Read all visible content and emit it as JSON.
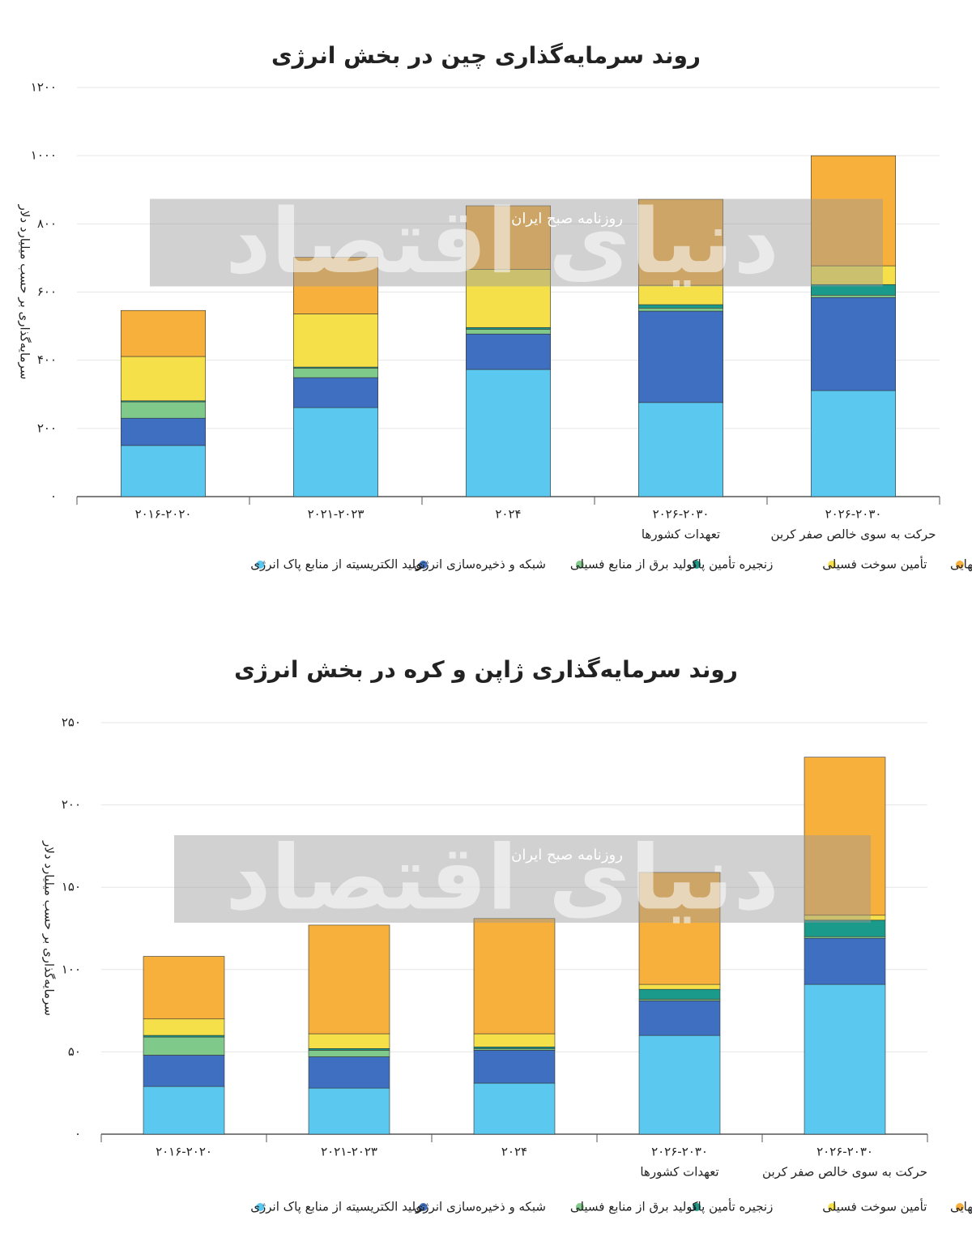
{
  "chart_data": [
    {
      "type": "stacked_bar",
      "title": "روند سرمایه‌گذاری چین در بخش انرژی",
      "y_label": "سرمایه‌گذاری بر حسب میلیارد دلار",
      "watermark": "دنیای اقتصاد",
      "watermark_note": "روزنامه صبح ایران",
      "categories": [
        "۲۰۱۶-۲۰۲۰",
        "۲۰۲۱-۲۰۲۳",
        "۲۰۲۴",
        "۲۰۲۶-۲۰۳۰",
        "۲۰۲۶-۲۰۳۰"
      ],
      "category_notes": [
        null,
        null,
        null,
        "تعهدات کشورها",
        "حرکت به سوی خالص صفر کربن"
      ],
      "ylim": [
        0,
        1200
      ],
      "yticks": [
        {
          "value": 0,
          "label": "۰"
        },
        {
          "value": 200,
          "label": "۲۰۰"
        },
        {
          "value": 400,
          "label": "۴۰۰"
        },
        {
          "value": 600,
          "label": "۶۰۰"
        },
        {
          "value": 800,
          "label": "۸۰۰"
        },
        {
          "value": 1000,
          "label": "۱۰۰۰"
        },
        {
          "value": 1200,
          "label": "۱۲۰۰"
        }
      ],
      "grid": true,
      "series": [
        {
          "name": "تولید الکتریسیته از منابع پاک انرژی",
          "color": "#5bc8f0",
          "values": [
            150,
            261,
            373,
            276,
            311
          ]
        },
        {
          "name": "شبکه و ذخیره‌سازی انرژی",
          "color": "#3e6fc0",
          "values": [
            80,
            88,
            104,
            268,
            273
          ]
        },
        {
          "name": "تولید برق از منابع فسیلی",
          "color": "#7fc98a",
          "values": [
            48,
            28,
            14,
            9,
            7
          ]
        },
        {
          "name": "زنجیره تأمین پاک",
          "color": "#1a9a8a",
          "values": [
            3,
            3,
            5,
            10,
            31
          ]
        },
        {
          "name": "تأمین سوخت فسیلی",
          "color": "#f5e04a",
          "values": [
            130,
            156,
            171,
            57,
            55
          ]
        },
        {
          "name": "بخش مصرف نهایی",
          "color": "#f7b03c",
          "values": [
            135,
            166,
            186,
            252,
            323
          ]
        }
      ]
    },
    {
      "type": "stacked_bar",
      "title": "روند سرمایه‌گذاری ژاپن و کره در بخش انرژی",
      "y_label": "سرمایه‌گذاری بر حسب میلیارد دلار",
      "watermark": "دنیای اقتصاد",
      "watermark_note": "روزنامه صبح ایران",
      "categories": [
        "۲۰۱۶-۲۰۲۰",
        "۲۰۲۱-۲۰۲۳",
        "۲۰۲۴",
        "۲۰۲۶-۲۰۳۰",
        "۲۰۲۶-۲۰۳۰"
      ],
      "category_notes": [
        null,
        null,
        null,
        "تعهدات کشورها",
        "حرکت به سوی خالص صفر کربن"
      ],
      "ylim": [
        0,
        250
      ],
      "yticks": [
        {
          "value": 0,
          "label": "۰"
        },
        {
          "value": 50,
          "label": "۵۰"
        },
        {
          "value": 100,
          "label": "۱۰۰"
        },
        {
          "value": 150,
          "label": "۱۵۰"
        },
        {
          "value": 200,
          "label": "۲۰۰"
        },
        {
          "value": 250,
          "label": "۲۵۰"
        }
      ],
      "grid": true,
      "series": [
        {
          "name": "تولید الکتریسیته از منابع پاک انرژی",
          "color": "#5bc8f0",
          "values": [
            29,
            28,
            31,
            60,
            91
          ]
        },
        {
          "name": "شبکه و ذخیره‌سازی انرژی",
          "color": "#3e6fc0",
          "values": [
            19,
            19,
            20,
            21,
            28
          ]
        },
        {
          "name": "تولید برق از منابع فسیلی",
          "color": "#7fc98a",
          "values": [
            11,
            4,
            1,
            1,
            1
          ]
        },
        {
          "name": "زنجیره تأمین پاک",
          "color": "#1a9a8a",
          "values": [
            1,
            1,
            1,
            6,
            10
          ]
        },
        {
          "name": "تأمین سوخت فسیلی",
          "color": "#f5e04a",
          "values": [
            10,
            9,
            8,
            3,
            3
          ]
        },
        {
          "name": "بخش مصرف نهایی",
          "color": "#f7b03c",
          "values": [
            38,
            66,
            70,
            68,
            96
          ]
        }
      ]
    }
  ]
}
